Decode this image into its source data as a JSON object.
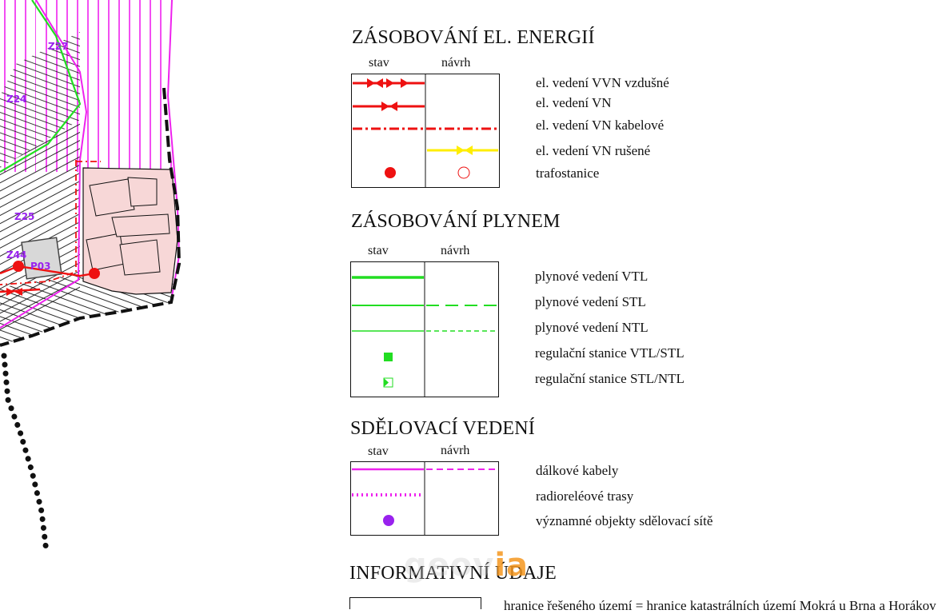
{
  "map": {
    "labels": [
      "Z27",
      "Z24",
      "Z25",
      "Z44",
      "P03"
    ]
  },
  "sections": [
    {
      "title": "ZÁSOBOVÁNÍ EL. ENERGIÍ",
      "col_stav": "stav",
      "col_navrh": "návrh",
      "items": [
        "el. vedení VVN vzdušné",
        "el. vedení VN",
        "el. vedení VN kabelové",
        "el. vedení VN rušené",
        "trafostanice"
      ]
    },
    {
      "title": "ZÁSOBOVÁNÍ PLYNEM",
      "col_stav": "stav",
      "col_navrh": "návrh",
      "items": [
        "plynové vedení VTL",
        "plynové vedení STL",
        "plynové vedení NTL",
        "regulační stanice VTL/STL",
        "regulační stanice STL/NTL"
      ]
    },
    {
      "title": "SDĚLOVACÍ VEDENÍ",
      "col_stav": "stav",
      "col_navrh": "návrh",
      "items": [
        "dálkové kabely",
        "radioreléové trasy",
        "významné objekty sdělovací sítě"
      ]
    },
    {
      "title": "INFORMATIVNÍ ÚDAJE",
      "items": [
        "hranice řešeného území = hranice katastrálních území Mokrá u Brna a Horákov"
      ]
    }
  ],
  "watermark": {
    "text_gray": "geov",
    "text_orange": "ia"
  },
  "colors": {
    "electric": "#ee1111",
    "electric_cancelled": "#ffee00",
    "gas": "#22dd22",
    "telecom": "#ee22ee",
    "telecom_object": "#9922ee",
    "built_area": "#f7d7d7",
    "plot_lines": "#111111"
  }
}
